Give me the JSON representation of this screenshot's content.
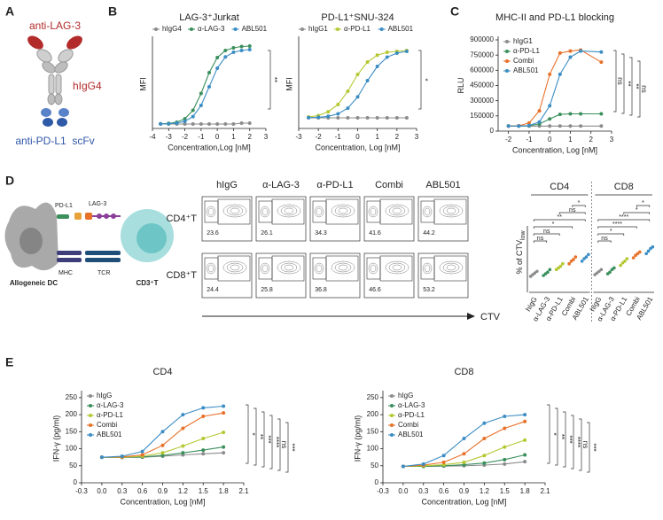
{
  "panel_labels": [
    "A",
    "B",
    "C",
    "D",
    "E"
  ],
  "antibody": {
    "top": "anti-LAG-3",
    "middle": "hIgG4",
    "bottom": "anti-PD-L1  scFv"
  },
  "mechanism": {
    "pd_l1": "PD-L1",
    "lag3": "LAG-3",
    "mhc": "MHC",
    "tcr": "TCR",
    "dc": "Allogeneic DC",
    "tcell": "CD3⁺T"
  },
  "flow": {
    "columns": [
      "hIgG",
      "α-LAG-3",
      "α-PD-L1",
      "Combi",
      "ABL501"
    ],
    "rows": [
      "CD4⁺T",
      "CD8⁺T"
    ],
    "percentages": [
      [
        23.6,
        26.1,
        34.3,
        41.6,
        44.2
      ],
      [
        24.4,
        25.8,
        36.8,
        46.6,
        53.2
      ]
    ],
    "axis": "CTV"
  },
  "chart_data": [
    {
      "type": "line",
      "title": "LAG-3⁺Jurkat",
      "xlabel": "Concentration,Log [nM]",
      "ylabel": "MFI",
      "x": [
        -3.5,
        -3,
        -2.5,
        -2,
        -1.5,
        -1,
        -0.5,
        0,
        0.5,
        1,
        1.5,
        2
      ],
      "xlim": [
        -4,
        3
      ],
      "xticks": [
        -4,
        -3,
        -2,
        -1,
        0,
        1,
        2,
        3
      ],
      "ylim": [
        0,
        100
      ],
      "legend": "top",
      "series": [
        {
          "name": "hIgG4",
          "color": "#8c8c8c",
          "values": [
            5,
            5,
            5,
            5,
            5,
            5,
            5,
            5,
            5,
            5,
            6,
            6
          ]
        },
        {
          "name": "α-LAG-3",
          "color": "#3a8f5c",
          "values": [
            5.2,
            5.7,
            7,
            10.9,
            20.5,
            39.5,
            63,
            80,
            88,
            91,
            92.5,
            93
          ]
        },
        {
          "name": "ABL501",
          "color": "#3b8dc4",
          "values": [
            5.1,
            5.3,
            6,
            8,
            13.4,
            26,
            47,
            68,
            80.7,
            86,
            88,
            89
          ]
        }
      ],
      "annotations": [
        "**"
      ]
    },
    {
      "type": "line",
      "title": "PD-L1⁺SNU-324",
      "xlabel": "Concentration, Log [nM]",
      "ylabel": "MFI",
      "x": [
        -2.5,
        -2,
        -1.5,
        -1,
        -0.5,
        0,
        0.5,
        1,
        1.5,
        2,
        2.5
      ],
      "xlim": [
        -3,
        3
      ],
      "xticks": [
        -3,
        -2,
        -1,
        0,
        1,
        2,
        3
      ],
      "ylim": [
        0,
        100
      ],
      "legend": "top",
      "series": [
        {
          "name": "hIgG1",
          "color": "#8c8c8c",
          "values": [
            12,
            12,
            12,
            12,
            12,
            12,
            12,
            12,
            12,
            12,
            12
          ]
        },
        {
          "name": "α-PD-L1",
          "color": "#b5c832",
          "values": [
            12.9,
            14.5,
            18.9,
            27,
            42,
            61,
            75,
            82.8,
            86,
            87,
            88
          ]
        },
        {
          "name": "ABL501",
          "color": "#3b8dc4",
          "values": [
            12.2,
            12.6,
            13.7,
            16.5,
            22.9,
            35.6,
            54,
            70,
            80.5,
            85,
            87
          ]
        }
      ],
      "annotations": [
        "*"
      ]
    },
    {
      "type": "line",
      "title": "MHC-II and PD-L1 blocking",
      "xlabel": "Concentration, Log [nM]",
      "ylabel": "RLU",
      "x": [
        -2,
        -1.5,
        -1,
        -0.5,
        0,
        0.5,
        1,
        1.5,
        2.5
      ],
      "xlim": [
        -2.5,
        3
      ],
      "xticks": [
        -2,
        -1,
        0,
        1,
        2,
        3
      ],
      "ylim": [
        0,
        900000
      ],
      "yticks": [
        0,
        150000,
        300000,
        450000,
        600000,
        750000,
        900000
      ],
      "legend": "upper left",
      "series": [
        {
          "name": "hIgG1",
          "color": "#8c8c8c",
          "values": [
            50000,
            50000,
            50000,
            50000,
            50000,
            50000,
            50000,
            50000,
            50000
          ]
        },
        {
          "name": "α-PD-L1",
          "color": "#3a8f5c",
          "values": [
            50000,
            50000,
            52000,
            70000,
            120000,
            165000,
            170000,
            170000,
            170000
          ]
        },
        {
          "name": "Combi",
          "color": "#e8712a",
          "values": [
            50000,
            52000,
            80000,
            200000,
            560000,
            770000,
            790000,
            800000,
            680000
          ]
        },
        {
          "name": "ABL501",
          "color": "#3b8dc4",
          "values": [
            50000,
            50000,
            55000,
            90000,
            250000,
            560000,
            730000,
            790000,
            780000
          ]
        }
      ],
      "annotations": [
        "ns",
        "**",
        "**",
        "ns"
      ]
    },
    {
      "type": "dot",
      "groups": [
        "CD4",
        "CD8"
      ],
      "ylabel": "% of CTV",
      "ylabel_sub": "low",
      "ylim": [
        0,
        100
      ],
      "series": [
        {
          "name": "hIgG",
          "color": "#8c8c8c",
          "values": [
            [
              19,
              21,
              23,
              25
            ],
            [
              21,
              23,
              25,
              27
            ]
          ]
        },
        {
          "name": "α-LAG-3",
          "color": "#3a8f5c",
          "values": [
            [
              20,
              22,
              24,
              27
            ],
            [
              22,
              24,
              27,
              29
            ]
          ]
        },
        {
          "name": "α-PD-L1",
          "color": "#b5c832",
          "values": [
            [
              27,
              29,
              31,
              34
            ],
            [
              32,
              35,
              37,
              40
            ]
          ]
        },
        {
          "name": "Combi",
          "color": "#e8712a",
          "values": [
            [
              34,
              37,
              39,
              42
            ],
            [
              41,
              44,
              46,
              48
            ]
          ]
        },
        {
          "name": "ABL501",
          "color": "#3b8dc4",
          "values": [
            [
              37,
              40,
              42,
              45
            ],
            [
              46,
              49,
              52,
              54
            ]
          ]
        }
      ],
      "annotations": [
        [
          "ns",
          "ns",
          "*",
          "**",
          "ns",
          "*"
        ],
        [
          "ns",
          "*",
          "****",
          "****",
          "*",
          "*"
        ]
      ]
    },
    {
      "type": "line",
      "title": "CD4",
      "xlabel": "Concentration, Log [nM]",
      "ylabel": "IFN-γ (pg/ml)",
      "x": [
        0,
        0.3,
        0.6,
        0.9,
        1.2,
        1.5,
        1.8
      ],
      "xlim": [
        -0.3,
        2.1
      ],
      "xticks": [
        -0.3,
        {
          "value": 0,
          "label": "0.0"
        },
        0.3,
        0.6,
        0.9,
        1.2,
        1.5,
        1.8,
        2.1
      ],
      "ylim": [
        0,
        260
      ],
      "yticks": [
        0,
        50,
        100,
        150,
        200,
        250
      ],
      "legend": "upper left",
      "series": [
        {
          "name": "hIgG",
          "color": "#8c8c8c",
          "values": [
            75,
            74,
            75,
            78,
            82,
            85,
            88
          ]
        },
        {
          "name": "α-LAG-3",
          "color": "#3a8f5c",
          "values": [
            75,
            75,
            76,
            80,
            88,
            96,
            105
          ]
        },
        {
          "name": "α-PD-L1",
          "color": "#b5c832",
          "values": [
            75,
            75,
            78,
            88,
            108,
            130,
            148
          ]
        },
        {
          "name": "Combi",
          "color": "#e8712a",
          "values": [
            75,
            76,
            82,
            110,
            160,
            195,
            205
          ]
        },
        {
          "name": "ABL501",
          "color": "#3b8dc4",
          "values": [
            75,
            78,
            92,
            150,
            200,
            220,
            225
          ]
        }
      ],
      "annotations": [
        "*",
        "**",
        "***",
        "****",
        "ns",
        "***"
      ]
    },
    {
      "type": "line",
      "title": "CD8",
      "xlabel": "Concentration, Log [nM]",
      "ylabel": "IFN-γ (pg/ml)",
      "x": [
        0,
        0.3,
        0.6,
        0.9,
        1.2,
        1.5,
        1.8
      ],
      "xlim": [
        -0.3,
        2.1
      ],
      "xticks": [
        -0.3,
        {
          "value": 0,
          "label": "0.0"
        },
        0.3,
        0.6,
        0.9,
        1.2,
        1.5,
        1.8,
        2.1
      ],
      "ylim": [
        0,
        260
      ],
      "yticks": [
        0,
        50,
        100,
        150,
        200,
        250
      ],
      "legend": "upper left",
      "series": [
        {
          "name": "hIgG",
          "color": "#8c8c8c",
          "values": [
            48,
            48,
            49,
            50,
            52,
            55,
            62
          ]
        },
        {
          "name": "α-LAG-3",
          "color": "#3a8f5c",
          "values": [
            48,
            48,
            50,
            53,
            58,
            68,
            82
          ]
        },
        {
          "name": "α-PD-L1",
          "color": "#b5c832",
          "values": [
            48,
            50,
            53,
            60,
            80,
            105,
            125
          ]
        },
        {
          "name": "Combi",
          "color": "#e8712a",
          "values": [
            48,
            52,
            60,
            85,
            130,
            160,
            180
          ]
        },
        {
          "name": "ABL501",
          "color": "#3b8dc4",
          "values": [
            48,
            55,
            80,
            130,
            175,
            195,
            200
          ]
        }
      ],
      "annotations": [
        "*",
        "**",
        "***",
        "****",
        "ns",
        "***"
      ]
    }
  ]
}
